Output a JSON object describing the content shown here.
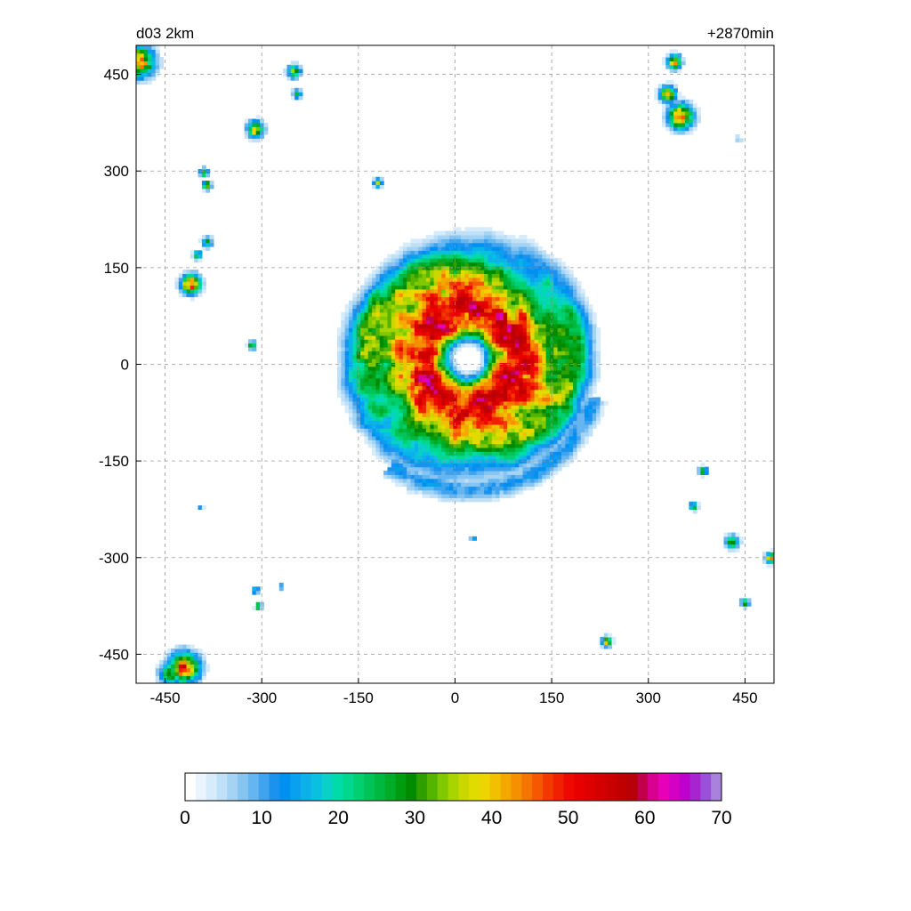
{
  "chart_data": {
    "type": "heatmap",
    "title_left": "d03 2km",
    "title_right": "+2870min",
    "xlim": [
      -495,
      495
    ],
    "ylim": [
      -495,
      495
    ],
    "x_ticks": [
      -450,
      -300,
      -150,
      0,
      150,
      300,
      450
    ],
    "y_ticks": [
      450,
      300,
      150,
      0,
      -150,
      -300,
      -450
    ],
    "grid": true,
    "colorbar": {
      "min": 0,
      "max": 70,
      "ticks": [
        0,
        10,
        20,
        30,
        40,
        50,
        60,
        70
      ],
      "colors": [
        "#ffffff",
        "#eaf4fd",
        "#d6ecfb",
        "#bfe0f7",
        "#a4d3f4",
        "#86c5f2",
        "#64b5f0",
        "#3fa3ee",
        "#1b93ee",
        "#0090f0",
        "#0aa0f0",
        "#0cb0ea",
        "#0ac0e0",
        "#0ad0c8",
        "#00dca8",
        "#00d890",
        "#00d070",
        "#00c458",
        "#00b840",
        "#00ac28",
        "#009c10",
        "#008a00",
        "#2f9f00",
        "#55b400",
        "#80c800",
        "#a8d400",
        "#cad800",
        "#e0dc00",
        "#eed400",
        "#f2c000",
        "#f4a800",
        "#f69000",
        "#f67400",
        "#f55800",
        "#f23a00",
        "#f02000",
        "#ec0a00",
        "#e60000",
        "#de0000",
        "#d40000",
        "#ca0000",
        "#c00000",
        "#b80008",
        "#c0004a",
        "#d80090",
        "#e600b8",
        "#d400c4",
        "#be00cc",
        "#a824d0",
        "#9a50d8",
        "#a882dc"
      ]
    },
    "storm": {
      "center": [
        20,
        10
      ],
      "eye_radius": 30,
      "core_radius": 110,
      "outer_radius": 190
    },
    "cells": [
      {
        "x": 340,
        "y": 470,
        "v": 45,
        "r": 10
      },
      {
        "x": 330,
        "y": 420,
        "v": 40,
        "r": 12
      },
      {
        "x": 350,
        "y": 385,
        "v": 50,
        "r": 18
      },
      {
        "x": 440,
        "y": 350,
        "v": 10,
        "r": 5
      },
      {
        "x": -490,
        "y": 470,
        "v": 45,
        "r": 22
      },
      {
        "x": -250,
        "y": 455,
        "v": 30,
        "r": 10
      },
      {
        "x": -245,
        "y": 420,
        "v": 25,
        "r": 7
      },
      {
        "x": -310,
        "y": 365,
        "v": 40,
        "r": 12
      },
      {
        "x": -390,
        "y": 298,
        "v": 35,
        "r": 6
      },
      {
        "x": -385,
        "y": 278,
        "v": 40,
        "r": 6
      },
      {
        "x": -120,
        "y": 282,
        "v": 38,
        "r": 6
      },
      {
        "x": -385,
        "y": 190,
        "v": 25,
        "r": 8
      },
      {
        "x": -400,
        "y": 170,
        "v": 35,
        "r": 6
      },
      {
        "x": -410,
        "y": 125,
        "v": 50,
        "r": 14
      },
      {
        "x": -315,
        "y": 30,
        "v": 30,
        "r": 6
      },
      {
        "x": -395,
        "y": -222,
        "v": 15,
        "r": 4
      },
      {
        "x": 385,
        "y": -165,
        "v": 35,
        "r": 6
      },
      {
        "x": 370,
        "y": -220,
        "v": 30,
        "r": 6
      },
      {
        "x": 430,
        "y": -275,
        "v": 30,
        "r": 10
      },
      {
        "x": 490,
        "y": -300,
        "v": 40,
        "r": 8
      },
      {
        "x": 450,
        "y": -370,
        "v": 35,
        "r": 6
      },
      {
        "x": 235,
        "y": -430,
        "v": 45,
        "r": 7
      },
      {
        "x": 28,
        "y": -270,
        "v": 20,
        "r": 4
      },
      {
        "x": -310,
        "y": -350,
        "v": 20,
        "r": 6
      },
      {
        "x": -305,
        "y": -375,
        "v": 30,
        "r": 5
      },
      {
        "x": -270,
        "y": -345,
        "v": 15,
        "r": 5
      },
      {
        "x": -420,
        "y": -470,
        "v": 50,
        "r": 22
      },
      {
        "x": -440,
        "y": -480,
        "v": 30,
        "r": 18
      }
    ]
  }
}
